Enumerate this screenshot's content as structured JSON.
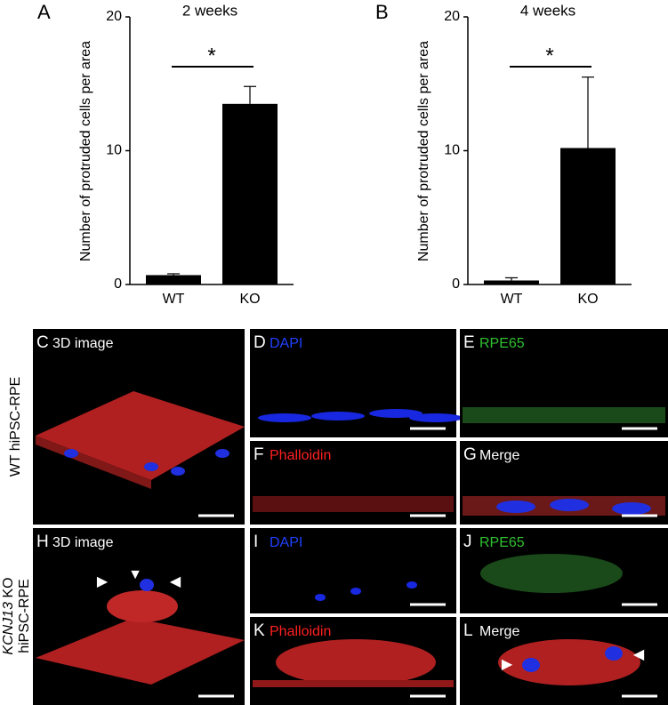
{
  "chart_data": [
    {
      "type": "bar",
      "panel": "A",
      "title": "2 weeks",
      "y_label": "Number of protruded cells per area",
      "categories": [
        "WT",
        "KO"
      ],
      "values": [
        0.7,
        13.5
      ],
      "errors": [
        0.1,
        1.3
      ],
      "color": "#000000",
      "ylim": [
        0,
        20
      ],
      "yticks": [
        0,
        10,
        20
      ],
      "significance": "*"
    },
    {
      "type": "bar",
      "panel": "B",
      "title": "4 weeks",
      "y_label": "Number of protruded cells per area",
      "categories": [
        "WT",
        "KO"
      ],
      "values": [
        0.3,
        10.2
      ],
      "errors": [
        0.2,
        5.3
      ],
      "color": "#000000",
      "ylim": [
        0,
        20
      ],
      "yticks": [
        0,
        10,
        20
      ],
      "significance": "*"
    }
  ],
  "row_labels": {
    "wt": "WT hiPSC-RPE",
    "ko_gene": "KCNJ13",
    "ko_rest": " KO",
    "ko_line2": "hiPSC-RPE"
  },
  "panels": [
    {
      "letter": "C",
      "label": "3D image",
      "label_color": "#ffffff"
    },
    {
      "letter": "D",
      "label": "DAPI",
      "label_color": "#2040ff"
    },
    {
      "letter": "E",
      "label": "RPE65",
      "label_color": "#30c030"
    },
    {
      "letter": "F",
      "label": "Phalloidin",
      "label_color": "#ff2020"
    },
    {
      "letter": "G",
      "label": "Merge",
      "label_color": "#ffffff"
    },
    {
      "letter": "H",
      "label": "3D image",
      "label_color": "#ffffff"
    },
    {
      "letter": "I",
      "label": "DAPI",
      "label_color": "#2040ff"
    },
    {
      "letter": "J",
      "label": "RPE65",
      "label_color": "#30c030"
    },
    {
      "letter": "K",
      "label": "Phalloidin",
      "label_color": "#ff2020"
    },
    {
      "letter": "L",
      "label": "Merge",
      "label_color": "#ffffff"
    }
  ]
}
